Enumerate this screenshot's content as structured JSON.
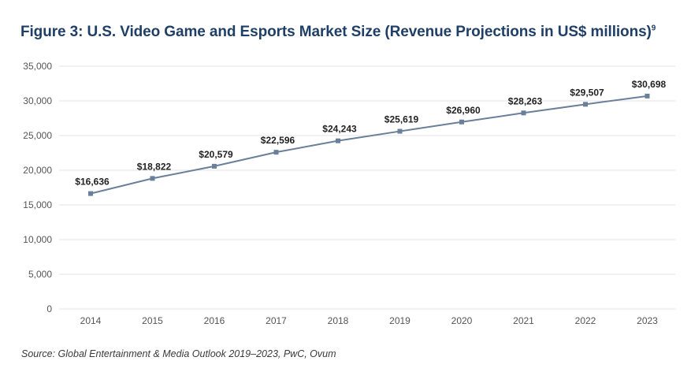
{
  "title": "Figure 3: U.S. Video Game and Esports Market Size (Revenue Projections in US$ millions)",
  "title_footnote": "9",
  "source": "Source: Global Entertainment & Media Outlook 2019–2023, PwC, Ovum",
  "chart_data": {
    "type": "line",
    "title": "Figure 3: U.S. Video Game and Esports Market Size (Revenue Projections in US$ millions)",
    "xlabel": "",
    "ylabel": "",
    "categories": [
      "2014",
      "2015",
      "2016",
      "2017",
      "2018",
      "2019",
      "2020",
      "2021",
      "2022",
      "2023"
    ],
    "series": [
      {
        "values": [
          16636,
          18822,
          20579,
          22596,
          24243,
          25619,
          26960,
          28263,
          29507,
          30698
        ],
        "labels": [
          "$16,636",
          "$18,822",
          "$20,579",
          "$22,596",
          "$24,243",
          "$25,619",
          "$26,960",
          "$28,263",
          "$29,507",
          "$30,698"
        ]
      }
    ],
    "ylim": [
      0,
      35000
    ],
    "yticks": [
      "0",
      "5,000",
      "10,000",
      "15,000",
      "20,000",
      "25,000",
      "30,000",
      "35,000"
    ],
    "grid": true,
    "legend": "none",
    "line_color": "#6a7f99",
    "grid_color": "#e3e3e3"
  }
}
